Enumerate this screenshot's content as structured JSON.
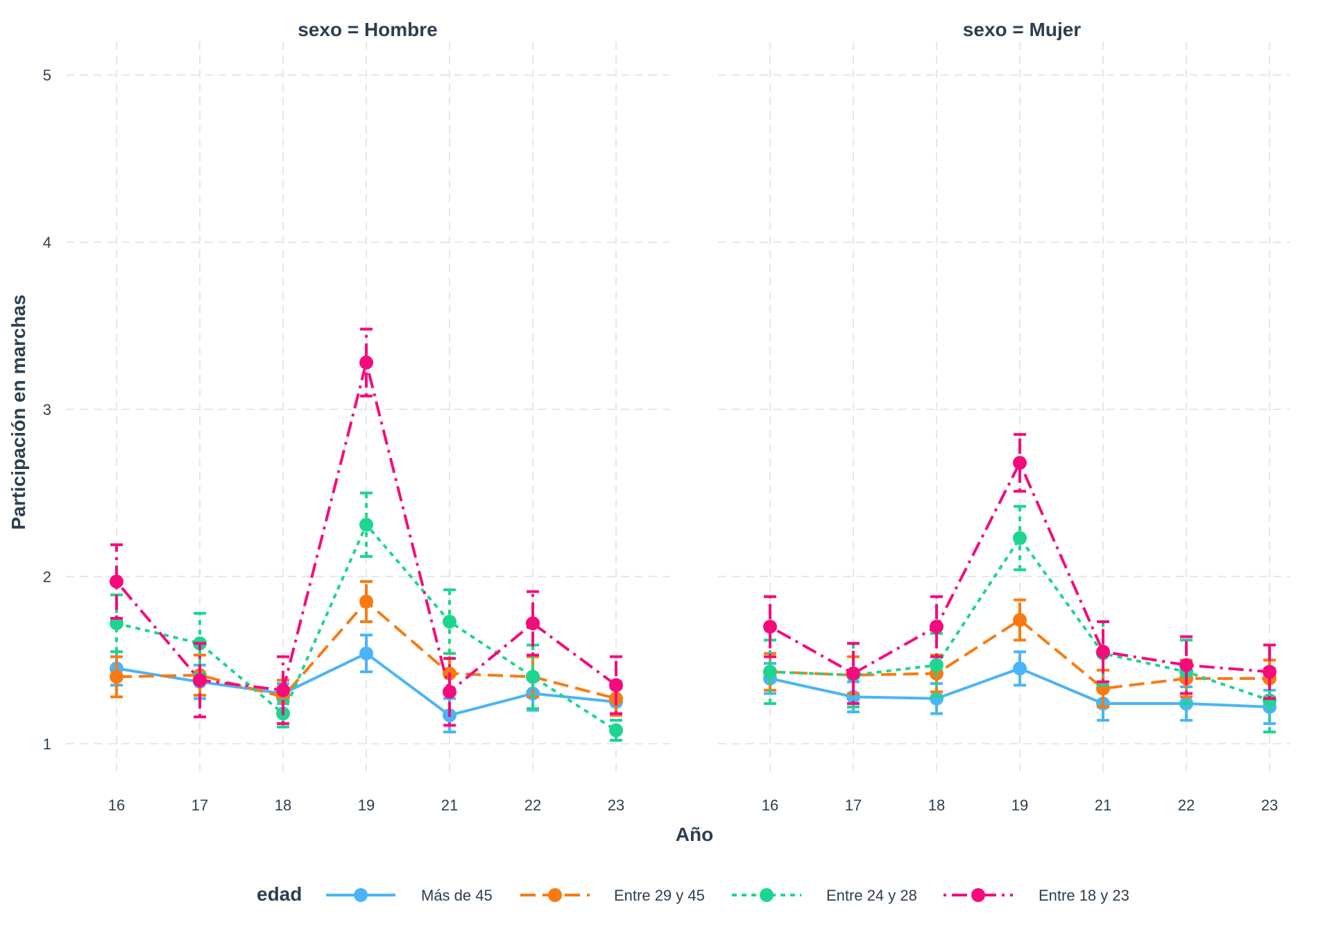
{
  "chart_data": {
    "type": "line",
    "x_categories": [
      "16",
      "17",
      "18",
      "19",
      "21",
      "22",
      "23"
    ],
    "xlabel": "Año",
    "ylabel": "Participación en marchas",
    "ylim": [
      0.8,
      5.2
    ],
    "y_ticks": [
      1,
      2,
      3,
      4,
      5
    ],
    "grid": true,
    "legend_title": "edad",
    "legend_position": "bottom",
    "panels": [
      {
        "strip": "sexo = Hombre",
        "series": [
          {
            "name": "Más de 45",
            "values": [
              1.45,
              1.37,
              1.3,
              1.54,
              1.17,
              1.3,
              1.25
            ],
            "lower": [
              1.35,
              1.27,
              1.24,
              1.43,
              1.07,
              1.2,
              1.17
            ],
            "upper": [
              1.55,
              1.47,
              1.36,
              1.65,
              1.27,
              1.4,
              1.33
            ]
          },
          {
            "name": "Entre 29 y 45",
            "values": [
              1.4,
              1.41,
              1.28,
              1.85,
              1.42,
              1.4,
              1.27
            ],
            "lower": [
              1.28,
              1.29,
              1.18,
              1.73,
              1.3,
              1.28,
              1.17
            ],
            "upper": [
              1.52,
              1.53,
              1.38,
              1.97,
              1.54,
              1.52,
              1.37
            ]
          },
          {
            "name": "Entre 24 y 28",
            "values": [
              1.72,
              1.6,
              1.18,
              2.31,
              1.73,
              1.4,
              1.08
            ],
            "lower": [
              1.55,
              1.42,
              1.1,
              2.12,
              1.54,
              1.21,
              1.02
            ],
            "upper": [
              1.89,
              1.78,
              1.26,
              2.5,
              1.92,
              1.59,
              1.14
            ]
          },
          {
            "name": "Entre 18 y 23",
            "values": [
              1.97,
              1.38,
              1.32,
              3.28,
              1.31,
              1.72,
              1.35
            ],
            "lower": [
              1.75,
              1.16,
              1.12,
              3.08,
              1.11,
              1.53,
              1.18
            ],
            "upper": [
              2.19,
              1.6,
              1.52,
              3.48,
              1.51,
              1.91,
              1.52
            ]
          }
        ]
      },
      {
        "strip": "sexo = Mujer",
        "series": [
          {
            "name": "Más de 45",
            "values": [
              1.39,
              1.28,
              1.27,
              1.45,
              1.24,
              1.24,
              1.22
            ],
            "lower": [
              1.3,
              1.19,
              1.18,
              1.35,
              1.14,
              1.14,
              1.12
            ],
            "upper": [
              1.48,
              1.37,
              1.36,
              1.55,
              1.34,
              1.34,
              1.32
            ]
          },
          {
            "name": "Entre 29 y 45",
            "values": [
              1.43,
              1.41,
              1.42,
              1.74,
              1.33,
              1.39,
              1.39
            ],
            "lower": [
              1.32,
              1.3,
              1.31,
              1.62,
              1.22,
              1.28,
              1.28
            ],
            "upper": [
              1.54,
              1.52,
              1.53,
              1.86,
              1.44,
              1.5,
              1.5
            ]
          },
          {
            "name": "Entre 24 y 28",
            "values": [
              1.43,
              1.41,
              1.47,
              2.23,
              1.54,
              1.43,
              1.26
            ],
            "lower": [
              1.24,
              1.22,
              1.28,
              2.04,
              1.35,
              1.24,
              1.07
            ],
            "upper": [
              1.62,
              1.6,
              1.66,
              2.42,
              1.73,
              1.62,
              1.45
            ]
          },
          {
            "name": "Entre 18 y 23",
            "values": [
              1.7,
              1.42,
              1.7,
              2.68,
              1.55,
              1.47,
              1.43
            ],
            "lower": [
              1.52,
              1.24,
              1.52,
              2.51,
              1.37,
              1.3,
              1.27
            ],
            "upper": [
              1.88,
              1.6,
              1.88,
              2.85,
              1.73,
              1.64,
              1.59
            ]
          }
        ]
      }
    ],
    "series_styles": [
      {
        "name": "Más de 45",
        "color": "#4ab4f7",
        "dash": "solid"
      },
      {
        "name": "Entre 29 y 45",
        "color": "#f97a10",
        "dash": "dashed"
      },
      {
        "name": "Entre 24 y 28",
        "color": "#1cd68f",
        "dash": "dotted"
      },
      {
        "name": "Entre 18 y 23",
        "color": "#f70a7c",
        "dash": "dotdash"
      }
    ]
  }
}
